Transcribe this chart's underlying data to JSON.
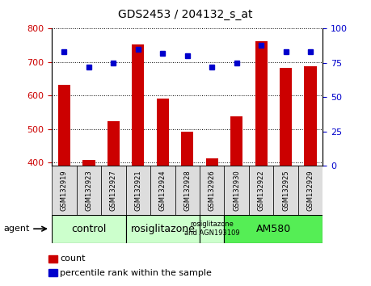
{
  "title": "GDS2453 / 204132_s_at",
  "samples": [
    "GSM132919",
    "GSM132923",
    "GSM132927",
    "GSM132921",
    "GSM132924",
    "GSM132928",
    "GSM132926",
    "GSM132930",
    "GSM132922",
    "GSM132925",
    "GSM132929"
  ],
  "counts": [
    632,
    407,
    524,
    752,
    590,
    493,
    412,
    537,
    762,
    682,
    688
  ],
  "percentiles": [
    83,
    72,
    75,
    85,
    82,
    80,
    72,
    75,
    88,
    83,
    83
  ],
  "ylim_left": [
    390,
    800
  ],
  "ylim_right": [
    0,
    100
  ],
  "yticks_left": [
    400,
    500,
    600,
    700,
    800
  ],
  "yticks_right": [
    0,
    25,
    50,
    75,
    100
  ],
  "bar_color": "#cc0000",
  "dot_color": "#0000cc",
  "agent_groups": [
    {
      "label": "control",
      "start": 0,
      "end": 3,
      "color": "#ccffcc",
      "fontsize": 9
    },
    {
      "label": "rosiglitazone",
      "start": 3,
      "end": 6,
      "color": "#ccffcc",
      "fontsize": 9
    },
    {
      "label": "rosiglitazone\nand AGN193109",
      "start": 6,
      "end": 7,
      "color": "#ccffcc",
      "fontsize": 6
    },
    {
      "label": "AM580",
      "start": 7,
      "end": 11,
      "color": "#55ee55",
      "fontsize": 9
    }
  ],
  "legend_labels": [
    "count",
    "percentile rank within the sample"
  ],
  "background_color": "#ffffff",
  "plot_bg": "#ffffff",
  "tick_label_color_left": "#cc0000",
  "tick_label_color_right": "#0000cc",
  "xtick_bg": "#dddddd"
}
